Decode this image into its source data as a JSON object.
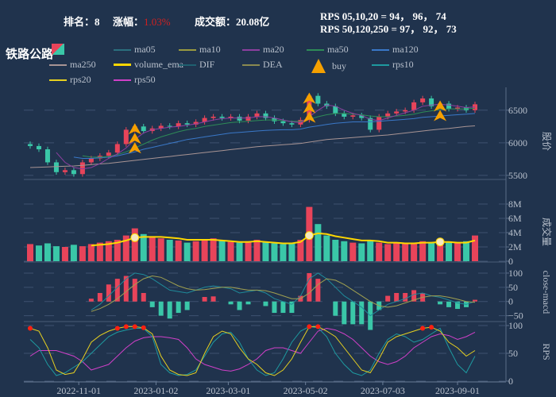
{
  "header": {
    "rank_label": "排名：",
    "rank": "8",
    "change_label": "涨幅：",
    "change": "1.03%",
    "turnover_label": "成交额：",
    "turnover": "20.08亿",
    "rps_line1": "RPS 05,10,20 = 94， 96， 74",
    "rps_line2": "RPS 50,120,250 = 97， 92， 73",
    "sector": "铁路公路"
  },
  "legend": [
    {
      "name": "",
      "color": "#e8445a",
      "type": "candle"
    },
    {
      "name": "ma05",
      "color": "#2b6f7e"
    },
    {
      "name": "ma10",
      "color": "#9a9a40"
    },
    {
      "name": "ma20",
      "color": "#8c3fa0"
    },
    {
      "name": "ma50",
      "color": "#2e8b57"
    },
    {
      "name": "ma120",
      "color": "#3a78c8"
    },
    {
      "name": "ma250",
      "color": "#a89494"
    },
    {
      "name": "volume_ema",
      "color": "#ffd700"
    },
    {
      "name": "DIF",
      "color": "#1f6070"
    },
    {
      "name": "DEA",
      "color": "#8a8a50"
    },
    {
      "name": "buy",
      "color": "#f5a000",
      "type": "arrow"
    },
    {
      "name": "rps10",
      "color": "#1e9aa0"
    },
    {
      "name": "rps20",
      "color": "#e6d020"
    },
    {
      "name": "rps50",
      "color": "#d040c8"
    }
  ],
  "colors": {
    "up": "#e8445a",
    "down": "#3ac7a8",
    "buy": "#f5a000",
    "rps_high": "#ff2010"
  },
  "chart_data": {
    "type": "candlestick",
    "x_ticks": [
      "2022-11-01",
      "2023-01-02",
      "2023-03-01",
      "2023-05-02",
      "2023-07-03",
      "2023-09-01"
    ],
    "dates": [
      "2022-09-23",
      "2022-09-30",
      "2022-10-07",
      "2022-10-14",
      "2022-10-21",
      "2022-10-28",
      "2022-11-04",
      "2022-11-11",
      "2022-11-18",
      "2022-11-25",
      "2022-12-02",
      "2022-12-09",
      "2022-12-16",
      "2022-12-23",
      "2022-12-30",
      "2023-01-06",
      "2023-01-13",
      "2023-01-20",
      "2023-01-27",
      "2023-02-03",
      "2023-02-10",
      "2023-02-17",
      "2023-02-24",
      "2023-03-03",
      "2023-03-10",
      "2023-03-17",
      "2023-03-24",
      "2023-03-31",
      "2023-04-07",
      "2023-04-14",
      "2023-04-21",
      "2023-04-28",
      "2023-05-05",
      "2023-05-12",
      "2023-05-19",
      "2023-05-26",
      "2023-06-02",
      "2023-06-09",
      "2023-06-16",
      "2023-06-23",
      "2023-06-30",
      "2023-07-07",
      "2023-07-14",
      "2023-07-21",
      "2023-07-28",
      "2023-08-04",
      "2023-08-11",
      "2023-08-18",
      "2023-08-25",
      "2023-09-01",
      "2023-09-08",
      "2023-09-15"
    ],
    "close": [
      5950,
      5900,
      5700,
      5550,
      5580,
      5520,
      5700,
      5760,
      5800,
      5850,
      5980,
      6200,
      6250,
      6180,
      6220,
      6260,
      6250,
      6300,
      6280,
      6320,
      6380,
      6400,
      6380,
      6400,
      6340,
      6400,
      6450,
      6380,
      6330,
      6300,
      6280,
      6350,
      6720,
      6600,
      6560,
      6450,
      6400,
      6420,
      6380,
      6200,
      6400,
      6450,
      6480,
      6500,
      6620,
      6680,
      6560,
      6600,
      6520,
      6540,
      6500,
      6590
    ],
    "ma20": [
      null,
      null,
      null,
      5850,
      5700,
      5620,
      5600,
      5620,
      5680,
      5760,
      5830,
      5920,
      6050,
      6150,
      6200,
      6220,
      6240,
      6250,
      6270,
      6290,
      6320,
      6350,
      6370,
      6380,
      6380,
      6380,
      6400,
      6400,
      6380,
      6350,
      6320,
      6310,
      6400,
      6500,
      6580,
      6560,
      6500,
      6450,
      6420,
      6360,
      6340,
      6380,
      6420,
      6460,
      6500,
      6560,
      6580,
      6590,
      6580,
      6560,
      6540,
      6550
    ],
    "ma50": [
      null,
      null,
      null,
      null,
      null,
      null,
      5800,
      5780,
      5780,
      5790,
      5820,
      5860,
      5920,
      5980,
      6040,
      6090,
      6130,
      6170,
      6200,
      6220,
      6250,
      6270,
      6290,
      6310,
      6320,
      6330,
      6340,
      6350,
      6350,
      6340,
      6330,
      6330,
      6360,
      6400,
      6430,
      6450,
      6450,
      6440,
      6430,
      6410,
      6400,
      6400,
      6410,
      6420,
      6440,
      6470,
      6490,
      6510,
      6520,
      6520,
      6520,
      6530
    ],
    "ma120": [
      null,
      null,
      null,
      null,
      null,
      5780,
      5760,
      5760,
      5770,
      5780,
      5800,
      5830,
      5860,
      5900,
      5930,
      5960,
      5990,
      6020,
      6050,
      6070,
      6090,
      6110,
      6130,
      6150,
      6160,
      6170,
      6180,
      6190,
      6195,
      6200,
      6200,
      6210,
      6240,
      6260,
      6280,
      6300,
      6310,
      6320,
      6320,
      6320,
      6330,
      6340,
      6350,
      6360,
      6370,
      6390,
      6400,
      6410,
      6420,
      6430,
      6440,
      6450
    ],
    "ma250": [
      5620,
      5625,
      5630,
      5635,
      5640,
      5645,
      5655,
      5665,
      5675,
      5685,
      5700,
      5715,
      5730,
      5745,
      5760,
      5775,
      5790,
      5805,
      5820,
      5835,
      5850,
      5865,
      5880,
      5895,
      5910,
      5925,
      5940,
      5950,
      5960,
      5970,
      5980,
      5990,
      6010,
      6030,
      6050,
      6060,
      6070,
      6080,
      6090,
      6100,
      6110,
      6120,
      6135,
      6150,
      6165,
      6180,
      6195,
      6210,
      6220,
      6235,
      6250,
      6260
    ],
    "volume_m": [
      2.4,
      2.2,
      2.5,
      2.1,
      2.0,
      2.3,
      2.1,
      2.4,
      2.6,
      2.8,
      3.0,
      3.6,
      4.6,
      3.8,
      3.4,
      3.2,
      3.0,
      2.9,
      2.6,
      2.8,
      3.0,
      3.2,
      2.9,
      2.7,
      2.6,
      2.8,
      3.0,
      2.7,
      2.5,
      2.4,
      2.6,
      3.0,
      7.6,
      5.2,
      3.6,
      3.0,
      2.8,
      2.6,
      2.5,
      2.9,
      2.6,
      2.4,
      2.5,
      2.5,
      2.6,
      2.8,
      2.6,
      2.9,
      2.7,
      2.6,
      2.8,
      3.6
    ],
    "volume_ema_m": [
      null,
      null,
      null,
      null,
      null,
      null,
      null,
      2.2,
      2.3,
      2.4,
      2.6,
      2.9,
      3.3,
      3.4,
      3.4,
      3.4,
      3.3,
      3.2,
      3.0,
      3.0,
      3.0,
      3.0,
      2.9,
      2.8,
      2.7,
      2.7,
      2.8,
      2.7,
      2.6,
      2.5,
      2.5,
      2.7,
      3.6,
      3.9,
      3.8,
      3.5,
      3.3,
      3.1,
      2.9,
      2.9,
      2.8,
      2.6,
      2.6,
      2.5,
      2.5,
      2.6,
      2.6,
      2.7,
      2.7,
      2.6,
      2.6,
      2.9
    ],
    "dif": [
      null,
      null,
      null,
      null,
      null,
      null,
      null,
      -30,
      -10,
      20,
      50,
      80,
      100,
      95,
      80,
      60,
      40,
      35,
      30,
      40,
      50,
      55,
      50,
      45,
      30,
      35,
      40,
      30,
      10,
      0,
      -10,
      20,
      80,
      100,
      80,
      50,
      20,
      0,
      -20,
      -50,
      -30,
      -10,
      0,
      10,
      25,
      30,
      20,
      15,
      5,
      -5,
      -10,
      0
    ],
    "dea": [
      null,
      null,
      null,
      null,
      null,
      null,
      null,
      -35,
      -25,
      -10,
      10,
      35,
      60,
      80,
      90,
      85,
      70,
      55,
      45,
      40,
      42,
      46,
      50,
      50,
      45,
      40,
      40,
      38,
      30,
      20,
      10,
      10,
      30,
      60,
      80,
      75,
      60,
      40,
      20,
      0,
      -15,
      -20,
      -15,
      -5,
      5,
      15,
      20,
      20,
      15,
      8,
      0,
      -3
    ],
    "rps10": [
      75,
      60,
      30,
      10,
      15,
      25,
      35,
      50,
      65,
      80,
      88,
      92,
      95,
      95,
      80,
      30,
      15,
      10,
      12,
      20,
      45,
      70,
      85,
      88,
      70,
      40,
      20,
      10,
      15,
      40,
      70,
      90,
      98,
      96,
      80,
      50,
      30,
      15,
      10,
      20,
      50,
      75,
      85,
      80,
      70,
      75,
      85,
      95,
      60,
      30,
      15,
      45
    ],
    "rps20": [
      95,
      90,
      60,
      20,
      12,
      15,
      40,
      70,
      82,
      90,
      95,
      98,
      98,
      96,
      85,
      45,
      20,
      12,
      10,
      15,
      50,
      80,
      90,
      85,
      60,
      40,
      30,
      15,
      10,
      20,
      40,
      70,
      98,
      98,
      90,
      80,
      60,
      40,
      20,
      15,
      40,
      70,
      80,
      85,
      90,
      95,
      97,
      90,
      70,
      60,
      45,
      55
    ],
    "rps50": [
      45,
      55,
      55,
      55,
      50,
      45,
      35,
      20,
      25,
      30,
      45,
      60,
      72,
      78,
      80,
      80,
      78,
      75,
      60,
      40,
      30,
      25,
      20,
      18,
      22,
      30,
      40,
      55,
      60,
      60,
      55,
      50,
      70,
      90,
      95,
      92,
      85,
      75,
      60,
      45,
      35,
      30,
      35,
      45,
      60,
      70,
      80,
      85,
      82,
      75,
      80,
      88
    ],
    "buy_signals": [
      {
        "date": "2022-12-16",
        "count": 3
      },
      {
        "date": "2023-05-05",
        "count": 3
      },
      {
        "date": "2023-08-18",
        "count": 2
      }
    ],
    "price_axis": {
      "label": "股价",
      "ticks": [
        "5500",
        "6000",
        "6500"
      ],
      "range": [
        5450,
        6850
      ]
    },
    "volume_axis": {
      "label": "成交量",
      "ticks": [
        "0",
        "2M",
        "4M",
        "6M",
        "8M"
      ],
      "range": [
        0,
        8
      ]
    },
    "macd_axis": {
      "label": "close-macd",
      "ticks": [
        "−50",
        "0",
        "50",
        "100"
      ],
      "range": [
        -65,
        125
      ]
    },
    "rps_axis": {
      "label": "RPS",
      "ticks": [
        "0",
        "50",
        "100"
      ],
      "range": [
        0,
        107
      ]
    }
  }
}
